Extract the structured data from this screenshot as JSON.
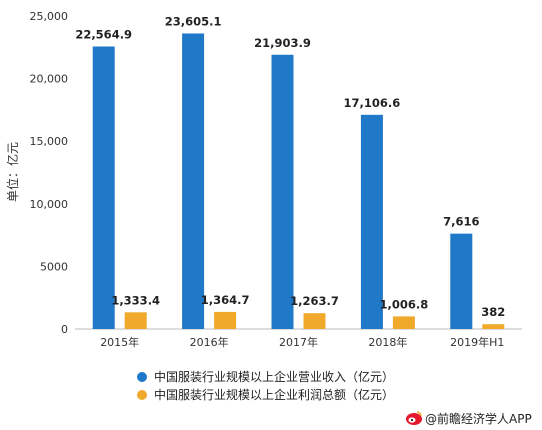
{
  "chart_data": {
    "type": "bar",
    "ylabel": "单位：亿元",
    "ylim": [
      0,
      25000
    ],
    "yticks": [
      0,
      5000,
      10000,
      15000,
      20000,
      25000
    ],
    "ytick_labels": [
      "0",
      "5000",
      "10,000",
      "15,000",
      "20,000",
      "25,000"
    ],
    "categories": [
      "2015年",
      "2016年",
      "2017年",
      "2018年",
      "2019年H1"
    ],
    "series": [
      {
        "name": "中国服装行业规模以上企业营业收入（亿元）",
        "color": "#1f78c8",
        "values": [
          22564.9,
          23605.1,
          21903.9,
          17106.6,
          7616
        ],
        "labels": [
          "22,564.9",
          "23,605.1",
          "21,903.9",
          "17,106.6",
          "7,616"
        ]
      },
      {
        "name": "中国服装行业规模以上企业利润总额（亿元）",
        "color": "#f0a92b",
        "values": [
          1333.4,
          1364.7,
          1263.7,
          1006.8,
          382
        ],
        "labels": [
          "1,333.4",
          "1,364.7",
          "1,263.7",
          "1,006.8",
          "382"
        ]
      }
    ],
    "grid": false,
    "legend_position": "bottom"
  },
  "credit": {
    "icon": "weibo-icon",
    "text": "@前瞻经济学人APP"
  }
}
